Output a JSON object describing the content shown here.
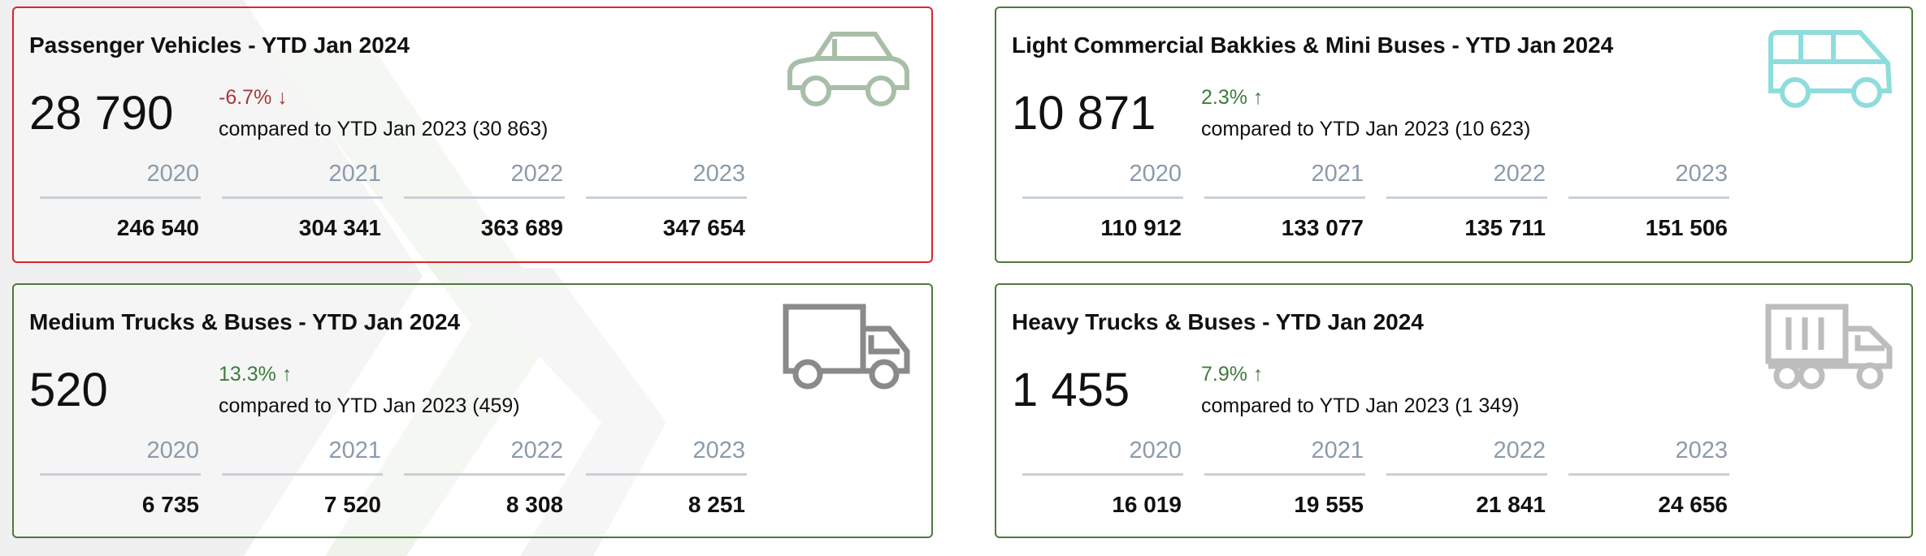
{
  "cards": [
    {
      "title": "Passenger Vehicles - YTD Jan 2024",
      "value": "28 790",
      "change": "-6.7% ↓",
      "comparison": "compared to YTD Jan 2023 (30 863)",
      "years": [
        {
          "label": "2020",
          "value": "246 540"
        },
        {
          "label": "2021",
          "value": "304 341"
        },
        {
          "label": "2022",
          "value": "363 689"
        },
        {
          "label": "2023",
          "value": "347 654"
        }
      ]
    },
    {
      "title": "Light Commercial Bakkies & Mini Buses - YTD Jan 2024",
      "value": "10 871",
      "change": "2.3% ↑",
      "comparison": "compared to YTD Jan 2023 (10 623)",
      "years": [
        {
          "label": "2020",
          "value": "110 912"
        },
        {
          "label": "2021",
          "value": "133 077"
        },
        {
          "label": "2022",
          "value": "135 711"
        },
        {
          "label": "2023",
          "value": "151 506"
        }
      ]
    },
    {
      "title": "Medium Trucks & Buses - YTD Jan 2024",
      "value": "520",
      "change": "13.3% ↑",
      "comparison": "compared to YTD Jan 2023 (459)",
      "years": [
        {
          "label": "2020",
          "value": "6 735"
        },
        {
          "label": "2021",
          "value": "7 520"
        },
        {
          "label": "2022",
          "value": "8 308"
        },
        {
          "label": "2023",
          "value": "8 251"
        }
      ]
    },
    {
      "title": "Heavy Trucks & Buses - YTD Jan 2024",
      "value": "1 455",
      "change": "7.9% ↑",
      "comparison": "compared to YTD Jan 2023 (1 349)",
      "years": [
        {
          "label": "2020",
          "value": "16 019"
        },
        {
          "label": "2021",
          "value": "19 555"
        },
        {
          "label": "2022",
          "value": "21 841"
        },
        {
          "label": "2023",
          "value": "24 656"
        }
      ]
    }
  ]
}
